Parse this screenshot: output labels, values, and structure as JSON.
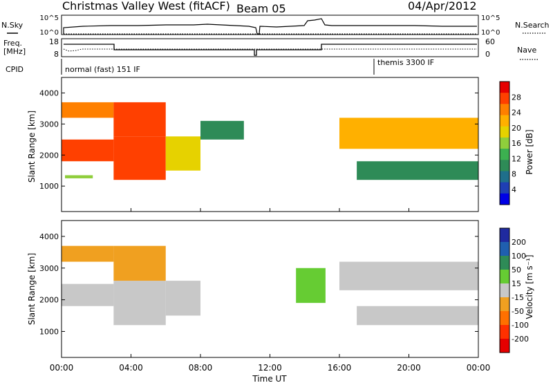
{
  "header": {
    "station": "Christmas Valley West (fitACF)",
    "beam": "Beam 05",
    "date": "04/Apr/2012"
  },
  "labels": {
    "nsky": "N.Sky",
    "nsearch": "N.Search",
    "freq_line1": "Freq.",
    "freq_line2": "[MHz]",
    "nave": "Nave",
    "cpid": "CPID",
    "cpid_mode1": "normal (fast) 151 IF",
    "cpid_mode2": "themis 3300 IF",
    "noise_ticks_left": [
      "10^5",
      "10^0"
    ],
    "noise_ticks_right": [
      "10^5",
      "10^0"
    ],
    "freq_ticks": [
      "18",
      "8"
    ],
    "nave_ticks": [
      "60",
      "0"
    ],
    "power_cbar_title": "Power [dB]",
    "power_cbar_ticks": [
      "28",
      "24",
      "20",
      "16",
      "12",
      "8",
      "4"
    ],
    "power_cbar_colors": [
      "#e60000",
      "#ff4000",
      "#ff8000",
      "#ffb000",
      "#e6d200",
      "#8fce3c",
      "#3cb050",
      "#2e8b57",
      "#1f6f8b",
      "#1f3fb4",
      "#0000e6"
    ],
    "vel_cbar_title": "Velocity [m s⁻¹]",
    "vel_cbar_ticks": [
      "200",
      "100",
      "50",
      "15",
      "-15",
      "-50",
      "-100",
      "-200"
    ],
    "vel_cbar_colors": [
      "#1f2a9f",
      "#1f5faf",
      "#2e8b57",
      "#66cc33",
      "#c8c8c8",
      "#f0a020",
      "#ff7000",
      "#ff3000",
      "#e60000"
    ],
    "colors": {
      "ground_scatter": "#c8c8c8"
    }
  },
  "chart_data": [
    {
      "type": "line",
      "name": "noise",
      "title": "",
      "ylabel": "N.Sky",
      "y_scale": "log",
      "ylim": [
        "10^0",
        "10^5"
      ],
      "series": [
        {
          "name": "N.Sky",
          "x": [
            "00:00",
            "01:00",
            "03:00",
            "05:00",
            "07:00",
            "08:30",
            "10:00",
            "11:00",
            "12:30",
            "14:00",
            "14:30",
            "15:00",
            "16:00",
            "18:00",
            "20:00",
            "22:00",
            "24:00"
          ],
          "values": [
            300,
            600,
            700,
            600,
            900,
            1200,
            700,
            500,
            300,
            250,
            3000,
            4000,
            400,
            300,
            300,
            300,
            250
          ]
        },
        {
          "name": "N.Search",
          "x": [
            "00:00",
            "24:00"
          ],
          "values": [
            1,
            1
          ]
        }
      ]
    },
    {
      "type": "line",
      "name": "frequency",
      "title": "",
      "ylabel": "Freq. [MHz]",
      "ylim": [
        8,
        18
      ],
      "y2label": "Nave",
      "y2lim": [
        0,
        60
      ],
      "series": [
        {
          "name": "Freq",
          "x": [
            "00:00",
            "03:00",
            "03:00",
            "11:00",
            "11:00",
            "15:00",
            "15:00",
            "24:00"
          ],
          "values": [
            14,
            14,
            10.5,
            10.5,
            10.5,
            10.5,
            14,
            14
          ]
        },
        {
          "name": "Nave",
          "x": [
            "00:00",
            "01:00",
            "03:00",
            "12:00",
            "24:00"
          ],
          "values": [
            25,
            28,
            24,
            24,
            24
          ]
        }
      ]
    },
    {
      "type": "heatmap",
      "name": "power",
      "title": "",
      "xlabel": "",
      "ylabel": "Slant Range [km]",
      "xticks": [
        "00:00",
        "04:00",
        "08:00",
        "12:00",
        "16:00",
        "20:00",
        "00:00"
      ],
      "yticks": [
        1000,
        2000,
        3000,
        4000
      ],
      "ylim": [
        180,
        4500
      ],
      "colorbar": "Power [dB]",
      "cbar_range": [
        0,
        30
      ],
      "regions": [
        {
          "t0": 0.0,
          "t1": 3.0,
          "r0": 1800,
          "r1": 2500,
          "value": 28
        },
        {
          "t0": 0.0,
          "t1": 3.0,
          "r0": 3200,
          "r1": 3700,
          "value": 24
        },
        {
          "t0": 0.2,
          "t1": 1.8,
          "r0": 1250,
          "r1": 1350,
          "value": 14
        },
        {
          "t0": 3.0,
          "t1": 6.0,
          "r0": 1200,
          "r1": 2600,
          "value": 28
        },
        {
          "t0": 3.0,
          "t1": 6.0,
          "r0": 2600,
          "r1": 3700,
          "value": 26
        },
        {
          "t0": 6.0,
          "t1": 8.0,
          "r0": 1500,
          "r1": 2600,
          "value": 18
        },
        {
          "t0": 8.0,
          "t1": 10.5,
          "r0": 2500,
          "r1": 3100,
          "value": 10
        },
        {
          "t0": 16.0,
          "t1": 24.0,
          "r0": 2200,
          "r1": 3200,
          "value": 20
        },
        {
          "t0": 17.0,
          "t1": 24.0,
          "r0": 1200,
          "r1": 1800,
          "value": 8
        }
      ]
    },
    {
      "type": "heatmap",
      "name": "velocity",
      "title": "",
      "xlabel": "Time UT",
      "ylabel": "Slant Range [km]",
      "xticks": [
        "00:00",
        "04:00",
        "08:00",
        "12:00",
        "16:00",
        "20:00",
        "00:00"
      ],
      "yticks": [
        1000,
        2000,
        3000,
        4000
      ],
      "ylim": [
        180,
        4500
      ],
      "colorbar": "Velocity [m s⁻¹]",
      "cbar_range": [
        -200,
        200
      ],
      "regions": [
        {
          "t0": 0.0,
          "t1": 3.0,
          "r0": 1800,
          "r1": 2500,
          "value": 0
        },
        {
          "t0": 0.0,
          "t1": 3.0,
          "r0": 3200,
          "r1": 3700,
          "value": -30
        },
        {
          "t0": 3.0,
          "t1": 6.0,
          "r0": 1200,
          "r1": 2600,
          "value": 0
        },
        {
          "t0": 3.0,
          "t1": 6.0,
          "r0": 2600,
          "r1": 3700,
          "value": -30
        },
        {
          "t0": 6.0,
          "t1": 8.0,
          "r0": 1500,
          "r1": 2600,
          "value": 0
        },
        {
          "t0": 13.5,
          "t1": 15.2,
          "r0": 1900,
          "r1": 3000,
          "value": 40
        },
        {
          "t0": 16.0,
          "t1": 24.0,
          "r0": 2300,
          "r1": 3200,
          "value": 0
        },
        {
          "t0": 17.0,
          "t1": 24.0,
          "r0": 1200,
          "r1": 1800,
          "value": 0
        }
      ]
    }
  ]
}
